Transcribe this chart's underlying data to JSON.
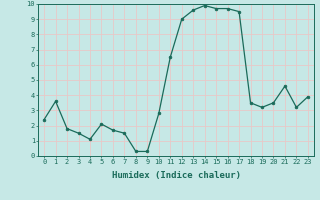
{
  "x": [
    0,
    1,
    2,
    3,
    4,
    5,
    6,
    7,
    8,
    9,
    10,
    11,
    12,
    13,
    14,
    15,
    16,
    17,
    18,
    19,
    20,
    21,
    22,
    23
  ],
  "y": [
    2.4,
    3.6,
    1.8,
    1.5,
    1.1,
    2.1,
    1.7,
    1.5,
    0.3,
    0.3,
    2.8,
    6.5,
    9.0,
    9.6,
    9.9,
    9.7,
    9.7,
    9.5,
    3.5,
    3.2,
    3.5,
    4.6,
    3.2,
    3.9
  ],
  "line_color": "#1a6b5a",
  "marker": "o",
  "markersize": 2,
  "linewidth": 0.9,
  "bg_color": "#c6e8e6",
  "grid_color": "#e8c8c8",
  "tick_color": "#1a6b5a",
  "xlabel": "Humidex (Indice chaleur)",
  "xlim": [
    -0.5,
    23.5
  ],
  "ylim": [
    0,
    10
  ],
  "yticks": [
    0,
    1,
    2,
    3,
    4,
    5,
    6,
    7,
    8,
    9,
    10
  ],
  "xticks": [
    0,
    1,
    2,
    3,
    4,
    5,
    6,
    7,
    8,
    9,
    10,
    11,
    12,
    13,
    14,
    15,
    16,
    17,
    18,
    19,
    20,
    21,
    22,
    23
  ],
  "label_fontsize": 5,
  "xlabel_fontsize": 6.5
}
